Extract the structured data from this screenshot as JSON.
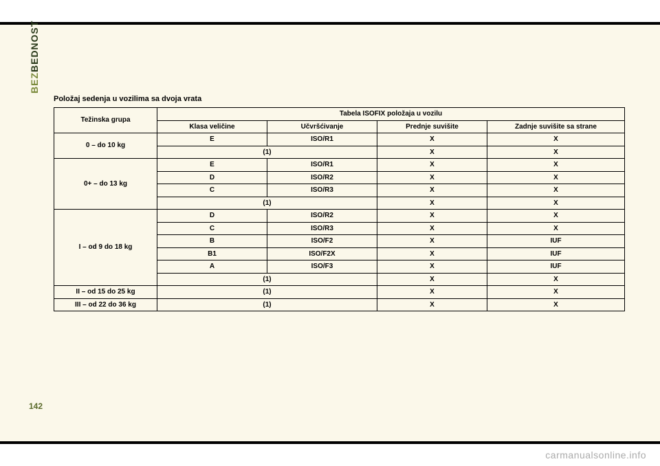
{
  "page": {
    "side_label_prefix": "BEZ",
    "side_label_suffix": "BEDNOST",
    "page_number": "142",
    "footer_link": "carmanualsonline.info"
  },
  "table": {
    "title": "Položaj sedenja u vozilima sa dvoja vrata",
    "header_group": "Težinska grupa",
    "header_super": "Tabela ISOFIX položaja u vozilu",
    "header_cols": {
      "class": "Klasa veličine",
      "fixture": "Učvršćivanje",
      "front": "Prednje suvišite",
      "rear": "Zadnje suvišite sa strane"
    },
    "groups": [
      {
        "label": "0 – do 10 kg",
        "rows": [
          {
            "class": "E",
            "fix": "ISO/R1",
            "front": "X",
            "rear": "X"
          },
          {
            "class": "",
            "fix": "(1)",
            "front": "X",
            "rear": "X"
          }
        ]
      },
      {
        "label": "0+ – do 13 kg",
        "rows": [
          {
            "class": "E",
            "fix": "ISO/R1",
            "front": "X",
            "rear": "X"
          },
          {
            "class": "D",
            "fix": "ISO/R2",
            "front": "X",
            "rear": "X"
          },
          {
            "class": "C",
            "fix": "ISO/R3",
            "front": "X",
            "rear": "X"
          },
          {
            "class": "",
            "fix": "(1)",
            "front": "X",
            "rear": "X"
          }
        ]
      },
      {
        "label": "I – od 9 do 18 kg",
        "rows": [
          {
            "class": "D",
            "fix": "ISO/R2",
            "front": "X",
            "rear": "X"
          },
          {
            "class": "C",
            "fix": "ISO/R3",
            "front": "X",
            "rear": "X"
          },
          {
            "class": "B",
            "fix": "ISO/F2",
            "front": "X",
            "rear": "IUF"
          },
          {
            "class": "B1",
            "fix": "ISO/F2X",
            "front": "X",
            "rear": "IUF"
          },
          {
            "class": "A",
            "fix": "ISO/F3",
            "front": "X",
            "rear": "IUF"
          },
          {
            "class": "",
            "fix": "(1)",
            "front": "X",
            "rear": "X"
          }
        ]
      },
      {
        "label": "II – od 15 do 25 kg",
        "rows": [
          {
            "class": "",
            "fix": "(1)",
            "front": "X",
            "rear": "X"
          }
        ]
      },
      {
        "label": "III – od 22 do 36 kg",
        "rows": [
          {
            "class": "",
            "fix": "(1)",
            "front": "X",
            "rear": "X"
          }
        ]
      }
    ]
  },
  "style": {
    "page_bg": "#ffffff",
    "band_bg": "#fbf8ea",
    "border_color": "#000000",
    "text_color": "#000000",
    "side_label_size": 14,
    "title_size": 11,
    "cell_size": 10
  }
}
